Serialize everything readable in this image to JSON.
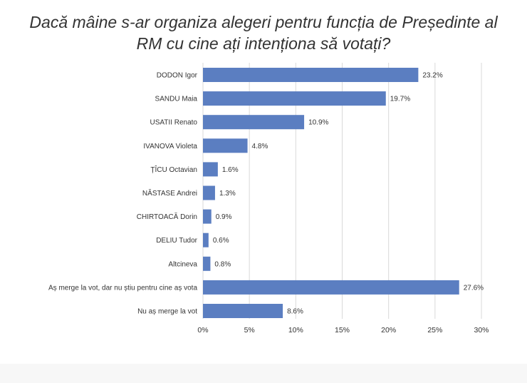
{
  "title_lines": [
    "Dacă mâine s-ar organiza alegeri pentru funcția de Președinte al",
    "RM cu cine ați intenționa să votați?"
  ],
  "colors": {
    "bar": "#5b7ec1",
    "grid": "#d9d9d9",
    "text": "#333333"
  },
  "chart_data": {
    "type": "bar",
    "orientation": "horizontal",
    "title": "Dacă mâine s-ar organiza alegeri pentru funcția de Președinte al RM cu cine ați intenționa să votați?",
    "categories": [
      "DODON Igor",
      "SANDU Maia",
      "USATII Renato",
      "IVANOVA Violeta",
      "ȚÎCU Octavian",
      "NĂSTASE Andrei",
      "CHIRTOACĂ Dorin",
      "DELIU Tudor",
      "Altcineva",
      "Aș merge la vot, dar nu știu pentru cine aș vota",
      "Nu aș merge la vot"
    ],
    "values": [
      23.2,
      19.7,
      10.9,
      4.8,
      1.6,
      1.3,
      0.9,
      0.6,
      0.8,
      27.6,
      8.6
    ],
    "value_labels": [
      "23.2%",
      "19.7%",
      "10.9%",
      "4.8%",
      "1.6%",
      "1.3%",
      "0.9%",
      "0.6%",
      "0.8%",
      "27.6%",
      "8.6%"
    ],
    "xlim": [
      0,
      30
    ],
    "xticks": [
      0,
      5,
      10,
      15,
      20,
      25,
      30
    ],
    "xtick_labels": [
      "0%",
      "5%",
      "10%",
      "15%",
      "20%",
      "25%",
      "30%"
    ],
    "grid": true,
    "legend": "none"
  }
}
